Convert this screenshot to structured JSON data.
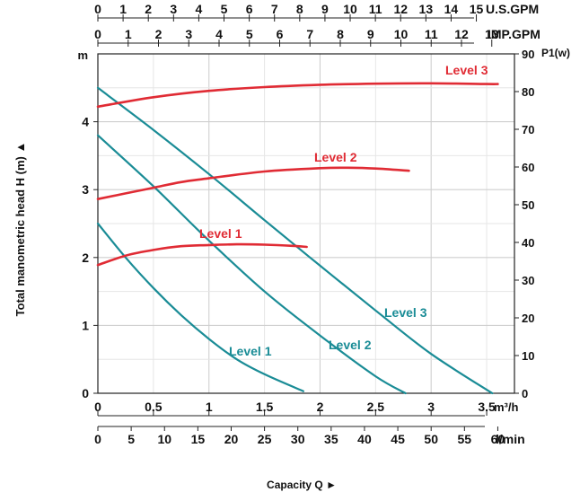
{
  "chart_data": {
    "type": "line",
    "axes": {
      "head": {
        "label": "Total manometric head H (m) ▲",
        "unit": "m",
        "range": [
          0,
          5
        ],
        "ticks": [
          0,
          1,
          2,
          3,
          4
        ]
      },
      "power": {
        "label": "P1(w)",
        "range": [
          0,
          90
        ],
        "ticks": [
          0,
          10,
          20,
          30,
          40,
          50,
          60,
          70,
          80,
          90
        ]
      },
      "flow_m3h": {
        "unit": "m³/h",
        "range": [
          0,
          3.75
        ],
        "ticks": [
          "0",
          "0.5",
          "1",
          "1.5",
          "2",
          "2.5",
          "3",
          "3.5"
        ]
      },
      "flow_lmin": {
        "unit": "l/min",
        "range": [
          0,
          62.5
        ],
        "ticks": [
          "0",
          "5",
          "10",
          "15",
          "20",
          "25",
          "30",
          "35",
          "40",
          "45",
          "50",
          "55",
          "60"
        ]
      },
      "flow_usgpm": {
        "unit": "U.S.GPM",
        "ticks": [
          "0",
          "1",
          "2",
          "3",
          "4",
          "5",
          "6",
          "7",
          "8",
          "9",
          "10",
          "11",
          "12",
          "13",
          "14",
          "15"
        ]
      },
      "flow_impgpm": {
        "unit": "IMP.GPM",
        "ticks": [
          "0",
          "1",
          "2",
          "3",
          "4",
          "5",
          "6",
          "7",
          "8",
          "9",
          "10",
          "11",
          "12",
          "13"
        ]
      },
      "xlabel": "Capacity Q ►"
    },
    "grid": true,
    "head_series": [
      {
        "name": "Level 1",
        "color": "#1a8c96",
        "x": [
          0,
          0.25,
          0.5,
          0.75,
          1.0,
          1.25,
          1.5,
          1.85
        ],
        "y": [
          2.5,
          2.0,
          1.55,
          1.15,
          0.8,
          0.5,
          0.28,
          0.03
        ]
      },
      {
        "name": "Level 2",
        "color": "#1a8c96",
        "x": [
          0,
          0.5,
          1.0,
          1.5,
          2.0,
          2.5,
          2.77
        ],
        "y": [
          3.8,
          3.05,
          2.25,
          1.5,
          0.85,
          0.25,
          0.0
        ]
      },
      {
        "name": "Level 3",
        "color": "#1a8c96",
        "x": [
          0,
          0.5,
          1.0,
          1.5,
          2.0,
          2.5,
          3.0,
          3.55
        ],
        "y": [
          4.5,
          3.88,
          3.23,
          2.55,
          1.88,
          1.22,
          0.58,
          0.0
        ]
      }
    ],
    "power_series": [
      {
        "name": "Level 1",
        "color": "#e02b34",
        "x": [
          0,
          0.25,
          0.5,
          0.75,
          1.0,
          1.25,
          1.5,
          1.75,
          1.88
        ],
        "y": [
          34,
          36.5,
          38,
          39,
          39.3,
          39.5,
          39.4,
          39.1,
          38.8
        ]
      },
      {
        "name": "Level 2",
        "color": "#e02b34",
        "x": [
          0,
          0.25,
          0.5,
          0.75,
          1.0,
          1.5,
          2.0,
          2.25,
          2.5,
          2.8
        ],
        "y": [
          51.5,
          53,
          54.5,
          56,
          57,
          58.8,
          59.7,
          59.8,
          59.6,
          59.0
        ]
      },
      {
        "name": "Level 3",
        "color": "#e02b34",
        "x": [
          0,
          0.5,
          1.0,
          1.5,
          2.0,
          2.5,
          3.0,
          3.5,
          3.6
        ],
        "y": [
          76,
          78.5,
          80.2,
          81.2,
          81.8,
          82.1,
          82.2,
          82.0,
          82.0
        ]
      }
    ],
    "annotations": [
      {
        "text": "Level 3",
        "color": "#e02b34"
      },
      {
        "text": "Level 2",
        "color": "#e02b34"
      },
      {
        "text": "Level 1",
        "color": "#e02b34"
      },
      {
        "text": "Level 3",
        "color": "#1a8c96"
      },
      {
        "text": "Level 2",
        "color": "#1a8c96"
      },
      {
        "text": "Level 1",
        "color": "#1a8c96"
      }
    ]
  }
}
